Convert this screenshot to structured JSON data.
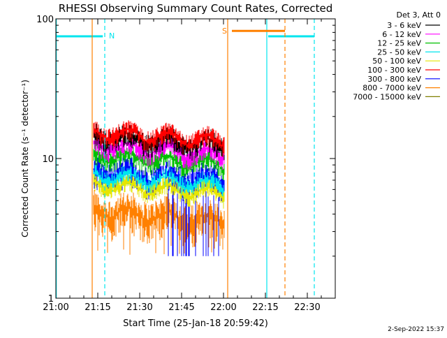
{
  "chart_data": {
    "type": "line",
    "title": "RHESSI Observing Summary Count Rates, Corrected",
    "xlabel": "Start Time (25-Jan-18 20:59:42)",
    "ylabel": "Corrected Count Rate (s⁻¹ detector⁻¹)",
    "x_ticks": [
      "21:00",
      "21:15",
      "21:30",
      "21:45",
      "22:00",
      "22:15",
      "22:30"
    ],
    "x_tick_minutes": [
      0,
      15,
      30,
      45,
      60,
      75,
      90
    ],
    "x_range_minutes": [
      0,
      100
    ],
    "y_scale": "log",
    "ylim": [
      1,
      100
    ],
    "y_ticks": [
      1,
      10,
      100
    ],
    "y_tick_labels": [
      "1",
      "10",
      "100"
    ],
    "grid": false,
    "legend_position": "top-right",
    "legend_header": "Det 3, Att 0",
    "footer": "2-Sep-2022 15:37",
    "data_window_minutes": [
      13.3,
      60.3
    ],
    "series": [
      {
        "name": "3 - 6 keV",
        "color": "#000000",
        "level": 14.5,
        "spread": 0.2
      },
      {
        "name": "6 - 12 keV",
        "color": "#ff00ff",
        "level": 12.5,
        "spread": 0.18
      },
      {
        "name": "12 - 25 keV",
        "color": "#00c000",
        "level": 10.5,
        "spread": 0.18
      },
      {
        "name": "25 - 50 keV",
        "color": "#00e5ee",
        "level": 7.5,
        "spread": 0.18
      },
      {
        "name": "50 - 100 keV",
        "color": "#e6e600",
        "level": 6.5,
        "spread": 0.15
      },
      {
        "name": "100 - 300 keV",
        "color": "#ff0000",
        "level": 15.5,
        "spread": 0.18
      },
      {
        "name": "300 - 800 keV",
        "color": "#0000ff",
        "level": 8.0,
        "spread": 0.28
      },
      {
        "name": "800 - 7000 keV",
        "color": "#ff8000",
        "level": 4.2,
        "spread": 0.35
      },
      {
        "name": "7000 - 15000 keV",
        "color": "#808000",
        "level": 0,
        "spread": 0
      }
    ],
    "annotations": {
      "night": {
        "label": "N",
        "color": "#00e5ee",
        "bar_minutes": [
          0,
          16.8
        ],
        "solid_line_minutes": 0,
        "dashed_line_minutes": 17.5
      },
      "night2": {
        "color": "#00e5ee",
        "bar_minutes": [
          76,
          92.5
        ],
        "solid_line_minutes": 75.5,
        "dashed_line_minutes": 92.5
      },
      "saa": {
        "label": "S",
        "color": "#ff8000",
        "bar_minutes": [
          63,
          82
        ],
        "solid_line_minutes": [
          13,
          61.5
        ],
        "dashed_line_minutes": 82
      }
    }
  }
}
